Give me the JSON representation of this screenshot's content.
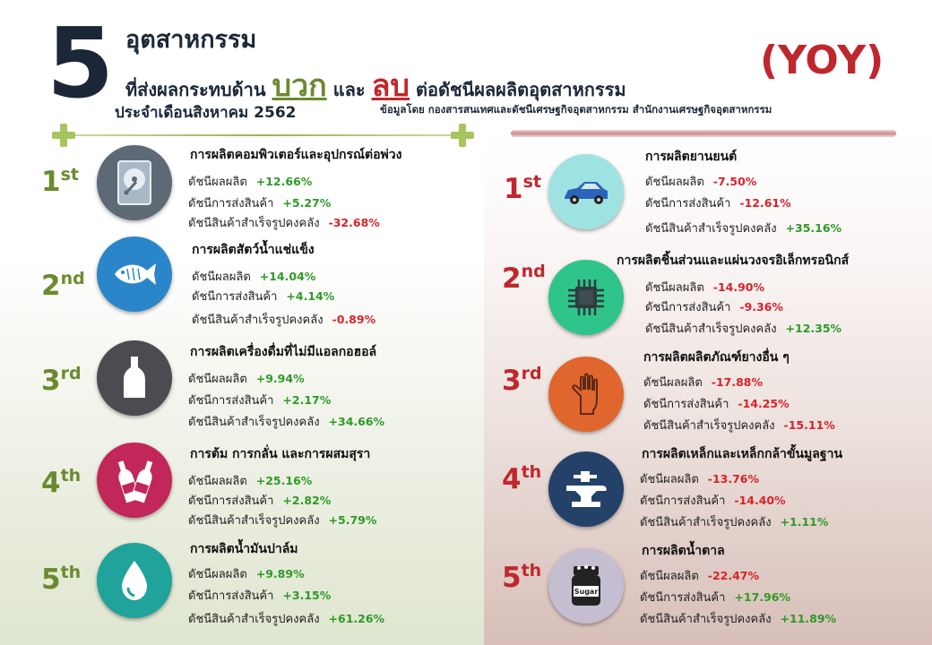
{
  "header": {
    "big_number": "5",
    "line1": "อุตสาหกรรม",
    "line2_prefix": "ที่ส่งผลกระทบด้าน",
    "positive_word": "บวก",
    "and_word": "และ",
    "negative_word": "ลบ",
    "line2_suffix": "ต่อดัชนีผลผลิตอุตสาหกรรม",
    "line3": "ประจำเดือนสิงหาคม 2562",
    "yoy": "(YOY)",
    "source": "ข้อมูลโดย กองสารสนเทศและดัชนีเศรษฐกิจอุตสาหกรรม สำนักงานเศรษฐกิจอุตสาหกรรม"
  },
  "labels": {
    "production": "ดัชนีผลผลิต",
    "shipment": "ดัชนีการส่งสินค้า",
    "inventory": "ดัชนีสินค้าสำเร็จรูปคงคลัง"
  },
  "positive": [
    {
      "rank": "1",
      "suffix": "st",
      "icon": "hard-disk-icon",
      "color": "#5d6a76",
      "title": "การผลิตคอมพิวเตอร์และอุปกรณ์ต่อพ่วง",
      "production": "+12.66%",
      "shipment": "+5.27%",
      "inventory": "-32.68%"
    },
    {
      "rank": "2",
      "suffix": "nd",
      "icon": "fish-icon",
      "color": "#2b86c9",
      "title": "การผลิตสัตว์น้ำแช่แข็ง",
      "production": "+14.04%",
      "shipment": "+4.14%",
      "inventory": "-0.89%"
    },
    {
      "rank": "3",
      "suffix": "rd",
      "icon": "bottle-icon",
      "color": "#4a4c50",
      "title": "การผลิตเครื่องดื่มที่ไม่มีแอลกอฮอล์",
      "production": "+9.94%",
      "shipment": "+2.17%",
      "inventory": "+34.66%"
    },
    {
      "rank": "4",
      "suffix": "th",
      "icon": "wine-bottles-icon",
      "color": "#c2275a",
      "title": "การต้ม การกลั่น และการผสมสุรา",
      "production": "+25.16%",
      "shipment": "+2.82%",
      "inventory": "+5.79%"
    },
    {
      "rank": "5",
      "suffix": "th",
      "icon": "oil-drop-icon",
      "color": "#1fa39a",
      "title": "การผลิตน้ำมันปาล์ม",
      "production": "+9.89%",
      "shipment": "+3.15%",
      "inventory": "+61.26%"
    }
  ],
  "negative": [
    {
      "rank": "1",
      "suffix": "st",
      "icon": "car-icon",
      "color": "#9ee3e2",
      "title": "การผลิตยานยนต์",
      "production": "-7.50%",
      "shipment": "-12.61%",
      "inventory": "+35.16%"
    },
    {
      "rank": "2",
      "suffix": "nd",
      "icon": "chip-icon",
      "color": "#2fc58a",
      "title": "การผลิตชิ้นส่วนและแผ่นวงจรอิเล็กทรอนิกส์",
      "production": "-14.90%",
      "shipment": "-9.36%",
      "inventory": "+12.35%"
    },
    {
      "rank": "3",
      "suffix": "rd",
      "icon": "rubber-glove-icon",
      "color": "#e0662e",
      "title": "การผลิตผลิตภัณฑ์ยางอื่น ๆ",
      "production": "-17.88%",
      "shipment": "-14.25%",
      "inventory": "-15.11%"
    },
    {
      "rank": "4",
      "suffix": "th",
      "icon": "anvil-icon",
      "color": "#24416a",
      "title": "การผลิตเหล็กและเหล็กกล้าขั้นมูลฐาน",
      "production": "-13.76%",
      "shipment": "-14.40%",
      "inventory": "+1.11%"
    },
    {
      "rank": "5",
      "suffix": "th",
      "icon": "sugar-jar-icon",
      "color": "#c5bed0",
      "title": "การผลิตน้ำตาล",
      "production": "-22.47%",
      "shipment": "+17.96%",
      "inventory": "+11.89%"
    }
  ],
  "sugar_label": "Sugar"
}
